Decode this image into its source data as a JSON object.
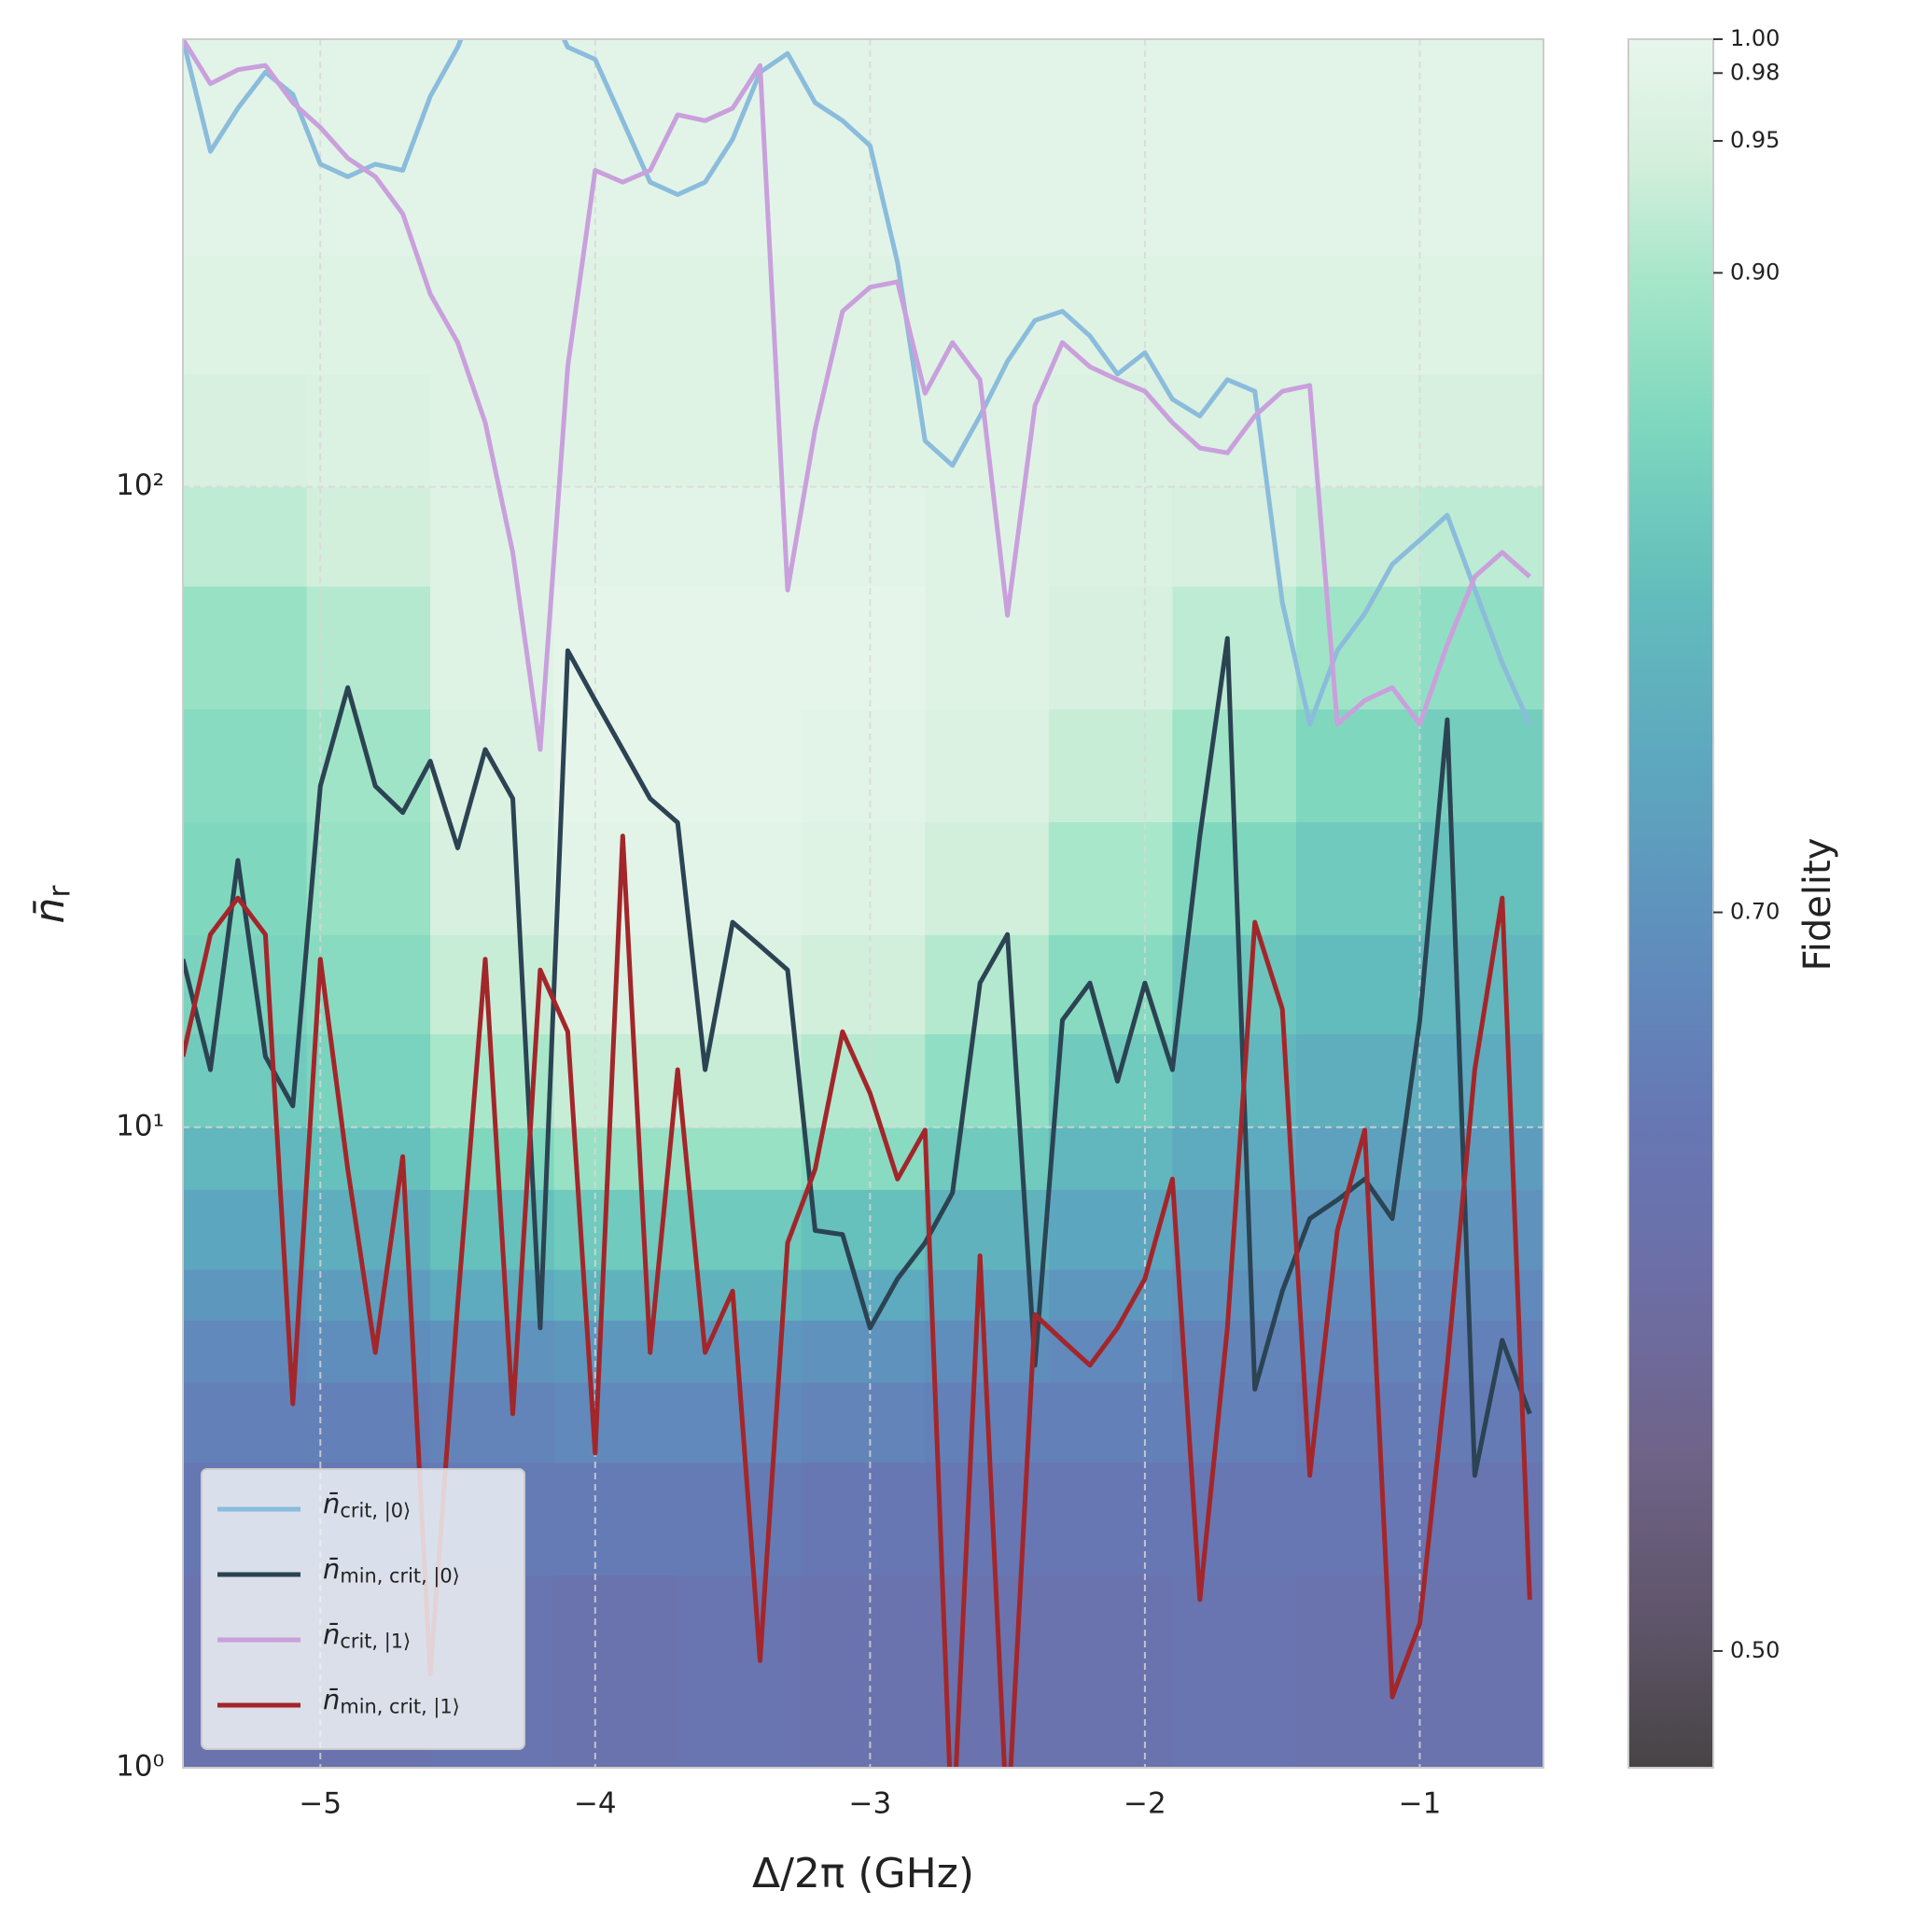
{
  "chart_data": {
    "type": "line",
    "xlabel": "Δ/2π (GHz)",
    "ylabel": "n̄r",
    "xlim": [
      -5.5,
      -0.55
    ],
    "ylim": [
      1,
      500
    ],
    "yscale": "log",
    "grid": true,
    "legend": "lower left",
    "xticks": [
      {
        "value": -5,
        "label": "−5"
      },
      {
        "value": -4,
        "label": "−4"
      },
      {
        "value": -3,
        "label": "−3"
      },
      {
        "value": -2,
        "label": "−2"
      },
      {
        "value": -1,
        "label": "−1"
      }
    ],
    "yticks": [
      {
        "value": 1,
        "label": "10⁰"
      },
      {
        "value": 10,
        "label": "10¹"
      },
      {
        "value": 100,
        "label": "10²"
      }
    ],
    "x": [
      -5.5,
      -5.4,
      -5.3,
      -5.2,
      -5.1,
      -5.0,
      -4.9,
      -4.8,
      -4.7,
      -4.6,
      -4.5,
      -4.4,
      -4.3,
      -4.2,
      -4.1,
      -4.0,
      -3.9,
      -3.8,
      -3.7,
      -3.6,
      -3.5,
      -3.4,
      -3.3,
      -3.2,
      -3.1,
      -3.0,
      -2.9,
      -2.8,
      -2.7,
      -2.6,
      -2.5,
      -2.4,
      -2.3,
      -2.2,
      -2.1,
      -2.0,
      -1.9,
      -1.8,
      -1.7,
      -1.6,
      -1.5,
      -1.4,
      -1.3,
      -1.2,
      -1.1,
      -1.0,
      -0.9,
      -0.8,
      -0.7,
      -0.6
    ],
    "series": [
      {
        "name": "n̄crit, |0⟩",
        "color": "#8bbcdb",
        "values": [
          500,
          334,
          390,
          444,
          410,
          319,
          305,
          319,
          312,
          407,
          486,
          620,
          650,
          600,
          486,
          465,
          373,
          299,
          286,
          299,
          349,
          444,
          475,
          398,
          373,
          341,
          224,
          118,
          108,
          129,
          157,
          182,
          188,
          172,
          150,
          162,
          137,
          129,
          147,
          141,
          66,
          42.6,
          55.5,
          63.4,
          75.7,
          82.6,
          90.3,
          69.2,
          53.1,
          42.6
        ]
      },
      {
        "name": "n̄min, crit, |0⟩",
        "color": "#2b4352",
        "values": [
          18.3,
          12.3,
          26.1,
          12.9,
          10.8,
          34.1,
          48.6,
          34.1,
          31,
          37.3,
          27.3,
          38.9,
          32.6,
          4.86,
          55.5,
          46.4,
          38.9,
          32.6,
          29.9,
          12.3,
          20.9,
          19.2,
          17.6,
          6.9,
          6.8,
          4.86,
          5.8,
          6.6,
          7.9,
          16.8,
          20,
          4.25,
          14.7,
          16.8,
          11.8,
          16.8,
          12.3,
          28.5,
          58,
          3.9,
          5.55,
          7.2,
          7.7,
          8.3,
          7.2,
          14.7,
          43.3,
          2.86,
          4.65,
          3.57
        ]
      },
      {
        "name": "n̄crit, |1⟩",
        "color": "#c9a0dc",
        "values": [
          500,
          426,
          448,
          455,
          398,
          364,
          326,
          305,
          267,
          200,
          168,
          126,
          79,
          38.9,
          154,
          312,
          299,
          312,
          381,
          373,
          390,
          455,
          69,
          123,
          188,
          205,
          209,
          140,
          168,
          147,
          63,
          134,
          168,
          154,
          147,
          141,
          126,
          115,
          113,
          129,
          141,
          144,
          42.6,
          46.4,
          48.6,
          42.6,
          56.7,
          72.4,
          79,
          72.4
        ]
      },
      {
        "name": "n̄min, crit, |1⟩",
        "color": "#a3262a",
        "values": [
          12.9,
          20,
          22.8,
          20,
          3.7,
          18.3,
          8.6,
          4.45,
          9.0,
          1.4,
          5.3,
          18.3,
          3.57,
          17.6,
          14.1,
          3.1,
          28.5,
          4.45,
          12.3,
          4.45,
          5.55,
          1.47,
          6.6,
          8.6,
          14.1,
          11.3,
          8.3,
          9.9,
          0.76,
          6.3,
          0.8,
          5.1,
          4.65,
          4.25,
          4.86,
          5.8,
          8.3,
          1.83,
          4.86,
          20.9,
          15.3,
          2.86,
          6.9,
          9.9,
          1.29,
          1.68,
          4.25,
          12.3,
          22.8,
          1.83
        ]
      }
    ],
    "heatmap": {
      "x_edges": [
        -5.5,
        -5.05,
        -4.6,
        -4.15,
        -3.7,
        -3.25,
        -2.8,
        -2.35,
        -1.9,
        -1.45,
        -1.0,
        -0.55
      ],
      "y_edges": [
        1,
        2,
        3,
        4,
        5,
        6,
        8,
        10,
        14,
        20,
        30,
        45,
        70,
        100,
        150,
        230,
        500
      ],
      "values": [
        [
          0.62,
          0.62,
          0.63,
          0.62,
          0.63,
          0.62,
          0.62,
          0.62,
          0.63,
          0.62,
          0.62
        ],
        [
          0.64,
          0.64,
          0.65,
          0.65,
          0.65,
          0.64,
          0.64,
          0.64,
          0.64,
          0.64,
          0.63
        ],
        [
          0.66,
          0.66,
          0.67,
          0.68,
          0.68,
          0.67,
          0.66,
          0.66,
          0.66,
          0.65,
          0.65
        ],
        [
          0.68,
          0.69,
          0.7,
          0.71,
          0.71,
          0.7,
          0.69,
          0.68,
          0.67,
          0.67,
          0.66
        ],
        [
          0.71,
          0.72,
          0.75,
          0.77,
          0.77,
          0.75,
          0.73,
          0.71,
          0.7,
          0.69,
          0.68
        ],
        [
          0.74,
          0.76,
          0.8,
          0.82,
          0.82,
          0.8,
          0.77,
          0.74,
          0.72,
          0.71,
          0.7
        ],
        [
          0.78,
          0.8,
          0.85,
          0.88,
          0.88,
          0.86,
          0.82,
          0.78,
          0.75,
          0.73,
          0.72
        ],
        [
          0.82,
          0.84,
          0.9,
          0.93,
          0.93,
          0.91,
          0.87,
          0.82,
          0.78,
          0.76,
          0.75
        ],
        [
          0.84,
          0.86,
          0.93,
          0.96,
          0.96,
          0.94,
          0.91,
          0.86,
          0.81,
          0.79,
          0.78
        ],
        [
          0.85,
          0.88,
          0.95,
          0.98,
          0.98,
          0.97,
          0.94,
          0.9,
          0.85,
          0.82,
          0.8
        ],
        [
          0.86,
          0.89,
          0.96,
          0.99,
          0.99,
          0.98,
          0.96,
          0.93,
          0.89,
          0.85,
          0.83
        ],
        [
          0.88,
          0.91,
          0.97,
          0.99,
          0.99,
          0.99,
          0.97,
          0.95,
          0.92,
          0.89,
          0.87
        ],
        [
          0.92,
          0.94,
          0.97,
          0.98,
          0.98,
          0.98,
          0.97,
          0.96,
          0.95,
          0.93,
          0.92
        ],
        [
          0.95,
          0.96,
          0.97,
          0.97,
          0.97,
          0.97,
          0.97,
          0.96,
          0.96,
          0.96,
          0.95
        ],
        [
          0.97,
          0.97,
          0.97,
          0.97,
          0.97,
          0.97,
          0.97,
          0.97,
          0.97,
          0.97,
          0.97
        ],
        [
          0.98,
          0.98,
          0.98,
          0.98,
          0.98,
          0.98,
          0.98,
          0.98,
          0.98,
          0.98,
          0.98
        ]
      ]
    },
    "colorbar": {
      "label": "Fidelity",
      "lim": [
        0.47,
        1.0
      ],
      "norm": "power",
      "gamma": 1.2,
      "ticks": [
        {
          "value": 1.0,
          "label": "1.00"
        },
        0.98,
        0.95,
        {
          "value": 0.9,
          "label": "0.90"
        },
        {
          "value": 0.7,
          "label": "0.70"
        },
        {
          "value": 0.5,
          "label": "0.50"
        }
      ]
    }
  }
}
